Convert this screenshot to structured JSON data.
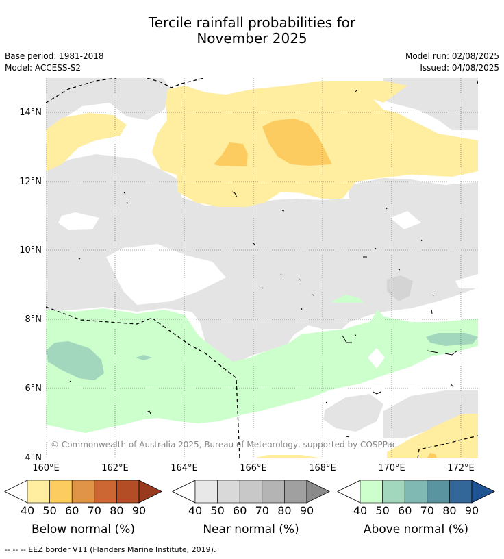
{
  "header": {
    "title_line1": "Tercile rainfall probabilities for",
    "title_line2": "November 2025",
    "base_period": "Base period: 1981-2018",
    "model": "Model: ACCESS-S2",
    "model_run": "Model run: 02/08/2025",
    "issued": "Issued: 04/08/2025"
  },
  "map": {
    "lat_labels": [
      "14°N",
      "12°N",
      "10°N",
      "8°N",
      "6°N",
      "4°N"
    ],
    "lon_labels": [
      "160°E",
      "162°E",
      "164°E",
      "166°E",
      "168°E",
      "170°E",
      "172°E"
    ],
    "copyright": "© Commonwealth of Australia 2025, Bureau of Meteorology, supported by COSPPac",
    "colors": {
      "below_50": "#ffeda0",
      "below_60": "#fdcc60",
      "near_40": "#e4e4e4",
      "near_50": "#d9d9d9",
      "above_40": "#ccffcc",
      "above_50": "#a2d6bd",
      "eez_line": "#000000"
    }
  },
  "legends": {
    "ticks": [
      "40",
      "50",
      "60",
      "70",
      "80",
      "90"
    ],
    "below": {
      "title": "Below normal (%)",
      "colors": [
        "#ffeda0",
        "#fdcc60",
        "#e09448",
        "#cc6633",
        "#b34d26",
        "#993a1f"
      ]
    },
    "near": {
      "title": "Near normal (%)",
      "colors": [
        "#e8e8e8",
        "#d9d9d9",
        "#c8c8c8",
        "#b4b4b4",
        "#a0a0a0",
        "#8a8a8a"
      ]
    },
    "above": {
      "title": "Above normal (%)",
      "colors": [
        "#ccffcc",
        "#a2d6bd",
        "#80b8b3",
        "#5a94a0",
        "#336699",
        "#1f5494"
      ]
    }
  },
  "footer": {
    "text": "--  --  -- EEZ border V11 (Flanders Marine Institute, 2019)."
  }
}
